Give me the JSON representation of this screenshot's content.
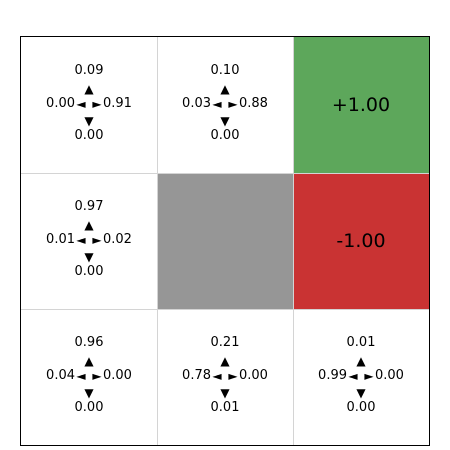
{
  "colors": {
    "goal": "#5da75b",
    "trap": "#c93333",
    "wall": "#969696",
    "empty": "#ffffff"
  },
  "arrows": {
    "up": "▲",
    "down": "▼",
    "left": "◄",
    "right": "►"
  },
  "grid": {
    "rows": [
      [
        {
          "type": "state",
          "up": "0.09",
          "left": "0.00",
          "right": "0.91",
          "down": "0.00"
        },
        {
          "type": "state",
          "up": "0.10",
          "left": "0.03",
          "right": "0.88",
          "down": "0.00"
        },
        {
          "type": "goal",
          "label": "+1.00"
        }
      ],
      [
        {
          "type": "state",
          "up": "0.97",
          "left": "0.01",
          "right": "0.02",
          "down": "0.00"
        },
        {
          "type": "wall"
        },
        {
          "type": "trap",
          "label": "-1.00"
        }
      ],
      [
        {
          "type": "state",
          "up": "0.96",
          "left": "0.04",
          "right": "0.00",
          "down": "0.00"
        },
        {
          "type": "state",
          "up": "0.21",
          "left": "0.78",
          "right": "0.00",
          "down": "0.01"
        },
        {
          "type": "state",
          "up": "0.01",
          "left": "0.99",
          "right": "0.00",
          "down": "0.00"
        }
      ]
    ]
  }
}
